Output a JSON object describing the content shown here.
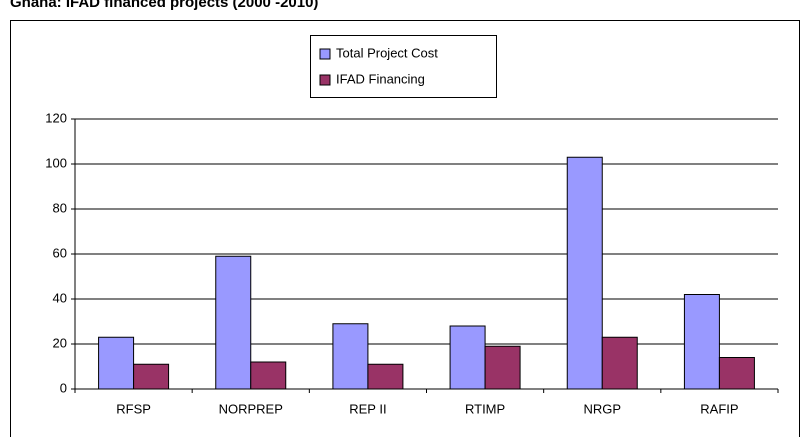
{
  "chart_data": {
    "type": "bar",
    "title": "Ghana: IFAD financed projects (2000 -2010)",
    "categories": [
      "RFSP",
      "NORPREP",
      "REP II",
      "RTIMP",
      "NRGP",
      "RAFIP"
    ],
    "series": [
      {
        "name": "Total Project Cost",
        "color": "#9999ff",
        "values": [
          23,
          59,
          29,
          28,
          103,
          42
        ]
      },
      {
        "name": "IFAD Financing",
        "color": "#993366",
        "values": [
          11,
          12,
          11,
          19,
          23,
          14
        ]
      }
    ],
    "ylim": [
      0,
      120
    ],
    "yticks": [
      0,
      20,
      40,
      60,
      80,
      100,
      120
    ],
    "grid": true
  }
}
